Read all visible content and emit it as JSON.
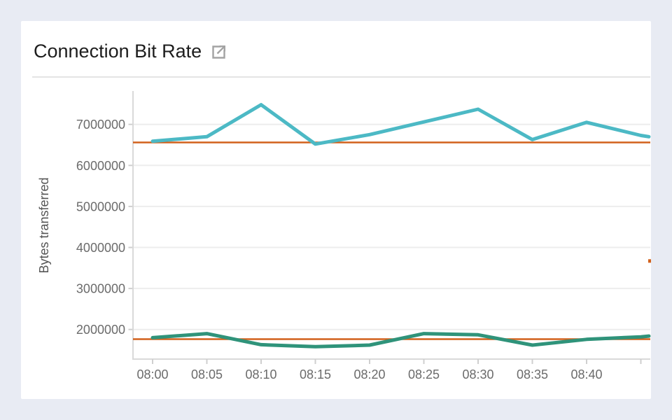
{
  "window": {
    "background_color": "#e8ebf3",
    "card_background_color": "#ffffff"
  },
  "header": {
    "title": "Connection Bit Rate",
    "title_color": "#1d1d1d",
    "popout_icon": "popout-icon",
    "popout_icon_color": "#a3a3a3",
    "divider_color": "#e4e4e4"
  },
  "chart_data": {
    "type": "line",
    "title": "Connection Bit Rate",
    "xlabel": "",
    "ylabel": "Bytes transferred",
    "legend": "none",
    "grid": "horizontal-only",
    "x_tick_labels": [
      "08:00",
      "08:05",
      "08:10",
      "08:15",
      "08:20",
      "08:25",
      "08:30",
      "08:35",
      "08:40"
    ],
    "x_step_minutes": 5,
    "y_ticks": [
      2000000,
      3000000,
      4000000,
      5000000,
      6000000,
      7000000
    ],
    "ylim": [
      1280000,
      7815000
    ],
    "axis_text_color": "#6b6b6b",
    "axis_title_color": "#555555",
    "axis_line_color": "#d9d9d9",
    "grid_color": "#ededed",
    "tick_color": "#cfcfcf",
    "series": [
      {
        "name": "upper-series",
        "color": "#4cb9c5",
        "values": [
          6590000,
          6700000,
          7480000,
          6520000,
          6750000,
          7060000,
          7370000,
          6630000,
          7050000,
          6730000
        ],
        "edge_value": 6700000
      },
      {
        "name": "lower-series",
        "color": "#2f937a",
        "values": [
          1800000,
          1900000,
          1630000,
          1580000,
          1620000,
          1900000,
          1870000,
          1620000,
          1760000,
          1820000
        ],
        "edge_value": 1840000
      }
    ],
    "threshold_lines": [
      {
        "value": 6560000,
        "color": "#d2611c"
      },
      {
        "value": 1765000,
        "color": "#d2611c"
      }
    ],
    "edge_marker": {
      "value": 3670000,
      "color": "#d2611c"
    }
  }
}
